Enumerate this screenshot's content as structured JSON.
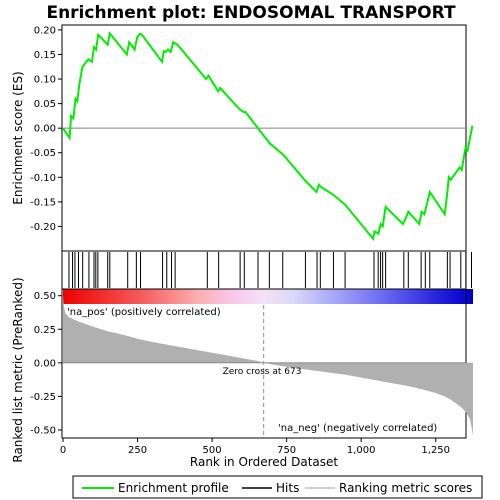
{
  "chart_data": {
    "type": "line",
    "title": "Enrichment plot: ENDOSOMAL TRANSPORT",
    "top_panel": {
      "ylabel": "Enrichment score (ES)",
      "ylim": [
        -0.25,
        0.21
      ],
      "yticks": [
        -0.2,
        -0.15,
        -0.1,
        -0.05,
        0.0,
        0.05,
        0.1,
        0.15,
        0.2
      ],
      "ytick_labels": [
        "-0.20",
        "-0.15",
        "-0.10",
        "-0.05",
        "0.00",
        "0.05",
        "0.10",
        "0.15",
        "0.20"
      ],
      "series": [
        {
          "name": "Enrichment profile",
          "color": "#00ee00",
          "x": [
            0,
            22,
            27,
            35,
            42,
            48,
            55,
            65,
            85,
            97,
            104,
            111,
            118,
            150,
            157,
            214,
            222,
            240,
            249,
            258,
            265,
            332,
            338,
            344,
            352,
            361,
            370,
            377,
            384,
            480,
            488,
            520,
            527,
            590,
            600,
            606,
            612,
            654,
            692,
            740,
            810,
            850,
            858,
            866,
            905,
            945,
            1040,
            1045,
            1058,
            1065,
            1072,
            1082,
            1140,
            1148,
            1158,
            1195,
            1203,
            1212,
            1222,
            1230,
            1280,
            1288,
            1294,
            1300,
            1330,
            1337,
            1350,
            1357,
            1373
          ],
          "y": [
            0.0,
            -0.02,
            0.025,
            0.02,
            0.06,
            0.055,
            0.09,
            0.125,
            0.14,
            0.135,
            0.165,
            0.16,
            0.19,
            0.17,
            0.193,
            0.15,
            0.175,
            0.16,
            0.185,
            0.192,
            0.19,
            0.135,
            0.157,
            0.155,
            0.16,
            0.155,
            0.175,
            0.172,
            0.17,
            0.1,
            0.107,
            0.075,
            0.082,
            0.04,
            0.035,
            0.033,
            0.033,
            0.0,
            -0.03,
            -0.055,
            -0.105,
            -0.13,
            -0.115,
            -0.12,
            -0.135,
            -0.155,
            -0.225,
            -0.21,
            -0.215,
            -0.195,
            -0.2,
            -0.16,
            -0.195,
            -0.185,
            -0.17,
            -0.195,
            -0.17,
            -0.175,
            -0.15,
            -0.13,
            -0.175,
            -0.135,
            -0.1,
            -0.105,
            -0.08,
            -0.085,
            -0.04,
            -0.045,
            0.005
          ]
        }
      ]
    },
    "hits_panel": {
      "name": "Hits",
      "positions": [
        20,
        32,
        40,
        52,
        66,
        87,
        104,
        110,
        117,
        150,
        157,
        217,
        246,
        260,
        334,
        348,
        364,
        376,
        484,
        522,
        594,
        608,
        654,
        692,
        737,
        813,
        852,
        863,
        907,
        946,
        1043,
        1057,
        1065,
        1072,
        1082,
        1143,
        1158,
        1201,
        1215,
        1230,
        1289,
        1298,
        1334,
        1351,
        1370
      ]
    },
    "ranking_panel": {
      "name": "Ranking metric scores",
      "ylabel": "Ranked list metric (PreRanked)",
      "xlabel": "Rank in Ordered Dataset",
      "xlim": [
        0,
        1375
      ],
      "ylim": [
        -0.56,
        0.55
      ],
      "xticks": [
        0,
        250,
        500,
        750,
        1000,
        1250
      ],
      "xtick_labels": [
        "0",
        "250",
        "500",
        "750",
        "1,000",
        "1,250"
      ],
      "yticks": [
        -0.5,
        -0.25,
        0.0,
        0.25,
        0.5
      ],
      "ytick_labels": [
        "-0.50",
        "-0.25",
        "0.00",
        "0.25",
        "0.50"
      ],
      "profile_x": [
        0,
        3,
        8,
        20,
        50,
        100,
        150,
        200,
        250,
        300,
        350,
        400,
        450,
        500,
        550,
        600,
        650,
        673,
        700,
        750,
        800,
        850,
        900,
        950,
        1000,
        1050,
        1100,
        1150,
        1200,
        1250,
        1280,
        1300,
        1320,
        1340,
        1355,
        1365,
        1372,
        1375
      ],
      "profile_y": [
        0.5,
        0.42,
        0.37,
        0.34,
        0.31,
        0.27,
        0.235,
        0.21,
        0.18,
        0.155,
        0.135,
        0.115,
        0.095,
        0.075,
        0.055,
        0.035,
        0.015,
        0.0,
        -0.012,
        -0.03,
        -0.045,
        -0.06,
        -0.075,
        -0.09,
        -0.11,
        -0.13,
        -0.15,
        -0.17,
        -0.195,
        -0.225,
        -0.25,
        -0.275,
        -0.305,
        -0.34,
        -0.38,
        -0.42,
        -0.5,
        -0.55
      ],
      "zero_cross": 673,
      "zero_cross_label": "Zero cross at 673",
      "pos_label": "'na_pos' (positively correlated)",
      "neg_label": "'na_neg' (negatively correlated)"
    },
    "legend": [
      {
        "name": "Enrichment profile",
        "color": "#00ee00"
      },
      {
        "name": "Hits",
        "color": "#000000"
      },
      {
        "name": "Ranking metric scores",
        "color": "#c0c0c0"
      }
    ],
    "colors": {
      "profile": "#00ee00",
      "pos_label": "#cc0000",
      "neg_label": "#0000cc",
      "ranking_fill": "#b0b0b0"
    }
  }
}
